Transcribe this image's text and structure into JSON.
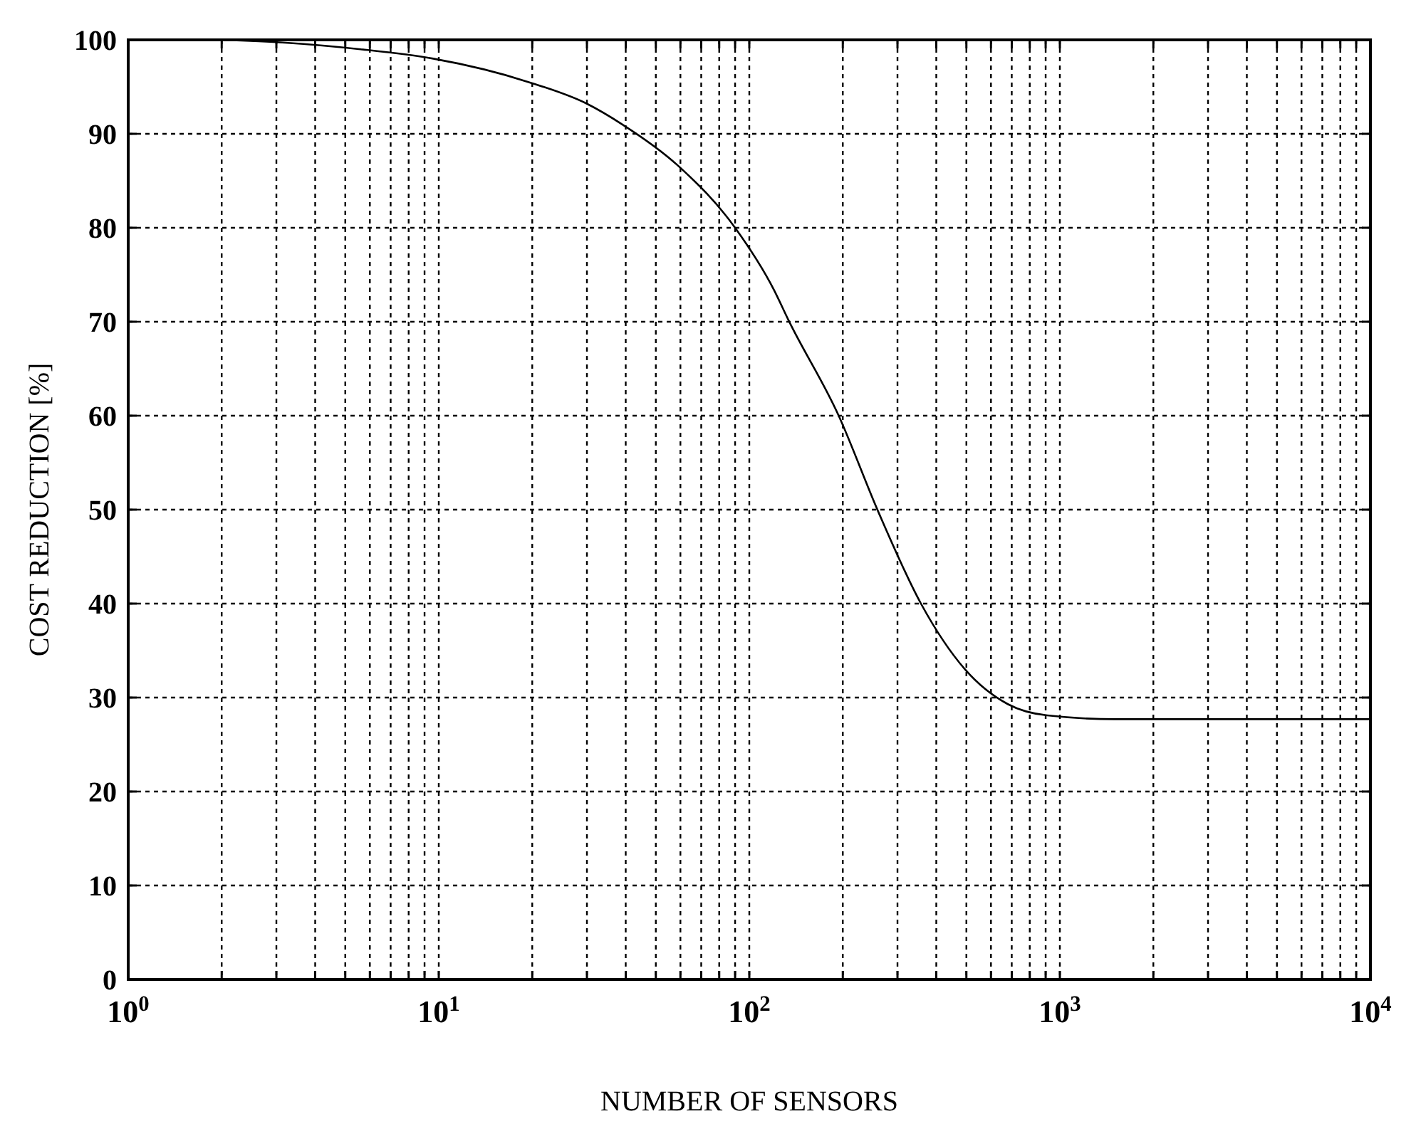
{
  "chart_data": {
    "type": "line",
    "xlabel": "NUMBER OF SENSORS",
    "ylabel": "COST REDUCTION [%]",
    "log": "x",
    "grid": true,
    "line_style": "solid",
    "marker": "none",
    "xlim": [
      1,
      10000
    ],
    "ylim": [
      0,
      100
    ],
    "xticks": [
      {
        "value": 1,
        "label": "10$^{0}$"
      },
      {
        "value": 2,
        "label": null
      },
      {
        "value": 3,
        "label": null
      },
      {
        "value": 4,
        "label": null
      },
      {
        "value": 5,
        "label": null
      },
      {
        "value": 6,
        "label": null
      },
      {
        "value": 7,
        "label": null
      },
      {
        "value": 8,
        "label": null
      },
      {
        "value": 9,
        "label": null
      },
      {
        "value": 10,
        "label": "10$^{1}$"
      },
      {
        "value": 20,
        "label": null
      },
      {
        "value": 30,
        "label": null
      },
      {
        "value": 40,
        "label": null
      },
      {
        "value": 50,
        "label": null
      },
      {
        "value": 60,
        "label": null
      },
      {
        "value": 70,
        "label": null
      },
      {
        "value": 80,
        "label": null
      },
      {
        "value": 90,
        "label": null
      },
      {
        "value": 100,
        "label": "10$^{2}$"
      },
      {
        "value": 200,
        "label": null
      },
      {
        "value": 300,
        "label": null
      },
      {
        "value": 400,
        "label": null
      },
      {
        "value": 500,
        "label": null
      },
      {
        "value": 600,
        "label": null
      },
      {
        "value": 700,
        "label": null
      },
      {
        "value": 800,
        "label": null
      },
      {
        "value": 900,
        "label": null
      },
      {
        "value": 1000,
        "label": "10$^{3}$"
      },
      {
        "value": 2000,
        "label": null
      },
      {
        "value": 3000,
        "label": null
      },
      {
        "value": 4000,
        "label": null
      },
      {
        "value": 5000,
        "label": null
      },
      {
        "value": 6000,
        "label": null
      },
      {
        "value": 7000,
        "label": null
      },
      {
        "value": 8000,
        "label": null
      },
      {
        "value": 9000,
        "label": null
      },
      {
        "value": 10000,
        "label": "10$^{4}$"
      }
    ],
    "yticks": [
      0,
      10,
      20,
      30,
      40,
      50,
      60,
      70,
      80,
      90,
      100
    ],
    "series": [
      {
        "color": "#000000",
        "x": [
          2,
          3.2,
          5.6,
          9.6,
          19.5,
          30,
          39,
          59,
          90,
          120,
          134,
          194,
          260,
          357,
          495,
          680,
          910,
          1500,
          10000
        ],
        "values": [
          100,
          99.7,
          99,
          98,
          95.5,
          93.2,
          91,
          86.6,
          80,
          73.4,
          70.1,
          60,
          49.8,
          40,
          33,
          29.3,
          28.1,
          27.7,
          27.7
        ]
      }
    ]
  }
}
